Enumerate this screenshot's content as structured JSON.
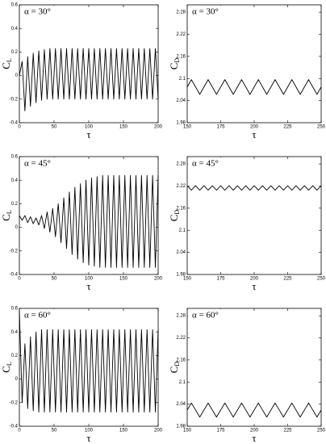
{
  "chart_data": [
    {
      "type": "line",
      "annotation": "α = 30°",
      "xlabel": "τ",
      "ylabel": "C",
      "ylabel_sub": "L",
      "color": "#000000",
      "xlim": [
        0,
        200
      ],
      "xticks": [
        0,
        50,
        100,
        150,
        200
      ],
      "ylim": [
        -0.4,
        0.6
      ],
      "yticks": [
        -0.4,
        -0.2,
        0,
        0.2,
        0.4,
        0.6
      ],
      "x": [
        0,
        4,
        8,
        12,
        16,
        20,
        24,
        28,
        32,
        36,
        40,
        44,
        48,
        52,
        56,
        60,
        64,
        68,
        72,
        76,
        80,
        84,
        88,
        92,
        96,
        100,
        104,
        108,
        112,
        116,
        120,
        124,
        128,
        132,
        136,
        140,
        144,
        148,
        152,
        156,
        160,
        164,
        168,
        172,
        176,
        180,
        184,
        188,
        192,
        196,
        200
      ],
      "values": [
        0,
        0.12,
        -0.3,
        0.16,
        -0.26,
        0.19,
        -0.23,
        0.21,
        -0.21,
        0.22,
        -0.2,
        0.23,
        -0.2,
        0.23,
        -0.2,
        0.23,
        -0.2,
        0.23,
        -0.2,
        0.23,
        -0.2,
        0.23,
        -0.2,
        0.23,
        -0.2,
        0.23,
        -0.2,
        0.23,
        -0.2,
        0.23,
        -0.2,
        0.23,
        -0.2,
        0.23,
        -0.2,
        0.23,
        -0.2,
        0.23,
        -0.2,
        0.23,
        -0.2,
        0.23,
        -0.2,
        0.23,
        -0.2,
        0.23,
        -0.2,
        0.23,
        -0.2,
        0.23,
        -0.2
      ]
    },
    {
      "type": "line",
      "annotation": "α = 30°",
      "xlabel": "τ",
      "ylabel": "C",
      "ylabel_sub": "D",
      "color": "#000000",
      "xlim": [
        150,
        250
      ],
      "xticks": [
        150,
        175,
        200,
        225,
        250
      ],
      "ylim": [
        1.98,
        2.3
      ],
      "yticks": [
        1.98,
        2.04,
        2.1,
        2.16,
        2.22,
        2.28
      ],
      "x": [
        150,
        153.125,
        156.25,
        159.375,
        162.5,
        165.625,
        168.75,
        171.875,
        175,
        178.125,
        181.25,
        184.375,
        187.5,
        190.625,
        193.75,
        196.875,
        200,
        203.125,
        206.25,
        209.375,
        212.5,
        215.625,
        218.75,
        221.875,
        225,
        228.125,
        231.25,
        234.375,
        237.5,
        240.625,
        243.75,
        246.875,
        250
      ],
      "values": [
        2.077,
        2.097,
        2.077,
        2.057,
        2.077,
        2.097,
        2.077,
        2.057,
        2.077,
        2.097,
        2.077,
        2.057,
        2.077,
        2.097,
        2.077,
        2.057,
        2.077,
        2.097,
        2.077,
        2.057,
        2.077,
        2.097,
        2.077,
        2.057,
        2.077,
        2.097,
        2.077,
        2.057,
        2.077,
        2.097,
        2.077,
        2.057,
        2.077
      ]
    },
    {
      "type": "line",
      "annotation": "α = 45°",
      "xlabel": "τ",
      "ylabel": "C",
      "ylabel_sub": "L",
      "color": "#000000",
      "xlim": [
        0,
        200
      ],
      "xticks": [
        0,
        50,
        100,
        150,
        200
      ],
      "ylim": [
        -0.4,
        0.6
      ],
      "yticks": [
        -0.4,
        -0.2,
        0,
        0.2,
        0.4,
        0.6
      ],
      "x": [
        0,
        4,
        8,
        12,
        16,
        20,
        24,
        28,
        32,
        36,
        40,
        44,
        48,
        52,
        56,
        60,
        64,
        68,
        72,
        76,
        80,
        84,
        88,
        92,
        96,
        100,
        104,
        108,
        112,
        116,
        120,
        124,
        128,
        132,
        136,
        140,
        144,
        148,
        152,
        156,
        160,
        164,
        168,
        172,
        176,
        180,
        184,
        188,
        192,
        196,
        200
      ],
      "values": [
        0.1,
        0.06,
        0.1,
        0.04,
        0.09,
        0.03,
        0.08,
        0.02,
        0.1,
        -0.01,
        0.13,
        -0.04,
        0.16,
        -0.08,
        0.2,
        -0.13,
        0.25,
        -0.18,
        0.3,
        -0.23,
        0.34,
        -0.27,
        0.37,
        -0.3,
        0.4,
        -0.32,
        0.42,
        -0.33,
        0.43,
        -0.34,
        0.44,
        -0.34,
        0.44,
        -0.34,
        0.44,
        -0.34,
        0.44,
        -0.34,
        0.44,
        -0.34,
        0.44,
        -0.34,
        0.44,
        -0.34,
        0.44,
        -0.34,
        0.44,
        -0.34,
        0.44,
        -0.34,
        0.44
      ]
    },
    {
      "type": "line",
      "annotation": "α = 45°",
      "xlabel": "τ",
      "ylabel": "C",
      "ylabel_sub": "D",
      "color": "#000000",
      "xlim": [
        150,
        250
      ],
      "xticks": [
        150,
        175,
        200,
        225,
        250
      ],
      "ylim": [
        1.98,
        2.3
      ],
      "yticks": [
        1.98,
        2.04,
        2.1,
        2.16,
        2.22,
        2.28
      ],
      "x": [
        150,
        153.125,
        156.25,
        159.375,
        162.5,
        165.625,
        168.75,
        171.875,
        175,
        178.125,
        181.25,
        184.375,
        187.5,
        190.625,
        193.75,
        196.875,
        200,
        203.125,
        206.25,
        209.375,
        212.5,
        215.625,
        218.75,
        221.875,
        225,
        228.125,
        231.25,
        234.375,
        237.5,
        240.625,
        243.75,
        246.875,
        250
      ],
      "values": [
        2.221,
        2.209,
        2.221,
        2.209,
        2.221,
        2.209,
        2.221,
        2.209,
        2.221,
        2.209,
        2.221,
        2.209,
        2.221,
        2.209,
        2.221,
        2.209,
        2.221,
        2.209,
        2.221,
        2.209,
        2.221,
        2.209,
        2.221,
        2.209,
        2.221,
        2.209,
        2.221,
        2.209,
        2.221,
        2.209,
        2.221,
        2.209,
        2.221
      ]
    },
    {
      "type": "line",
      "annotation": "α = 60°",
      "xlabel": "τ",
      "ylabel": "C",
      "ylabel_sub": "L",
      "color": "#000000",
      "xlim": [
        0,
        200
      ],
      "xticks": [
        0,
        50,
        100,
        150,
        200
      ],
      "ylim": [
        -0.4,
        0.6
      ],
      "yticks": [
        -0.4,
        -0.2,
        0,
        0.2,
        0.4,
        0.6
      ],
      "x": [
        0,
        4,
        8,
        12,
        16,
        20,
        24,
        28,
        32,
        36,
        40,
        44,
        48,
        52,
        56,
        60,
        64,
        68,
        72,
        76,
        80,
        84,
        88,
        92,
        96,
        100,
        104,
        108,
        112,
        116,
        120,
        124,
        128,
        132,
        136,
        140,
        144,
        148,
        152,
        156,
        160,
        164,
        168,
        172,
        176,
        180,
        184,
        188,
        192,
        196,
        200
      ],
      "values": [
        0.58,
        -0.2,
        0.3,
        -0.25,
        0.36,
        -0.27,
        0.4,
        -0.28,
        0.42,
        -0.28,
        0.42,
        -0.28,
        0.42,
        -0.28,
        0.42,
        -0.28,
        0.42,
        -0.28,
        0.42,
        -0.28,
        0.42,
        -0.28,
        0.42,
        -0.28,
        0.42,
        -0.28,
        0.42,
        -0.28,
        0.42,
        -0.28,
        0.42,
        -0.28,
        0.42,
        -0.28,
        0.42,
        -0.28,
        0.42,
        -0.28,
        0.42,
        -0.28,
        0.42,
        -0.28,
        0.42,
        -0.28,
        0.42,
        -0.28,
        0.42,
        -0.28,
        0.42,
        -0.28,
        0.42
      ]
    },
    {
      "type": "line",
      "annotation": "α = 60°",
      "xlabel": "τ",
      "ylabel": "C",
      "ylabel_sub": "D",
      "color": "#000000",
      "xlim": [
        150,
        250
      ],
      "xticks": [
        150,
        175,
        200,
        225,
        250
      ],
      "ylim": [
        1.98,
        2.3
      ],
      "yticks": [
        1.98,
        2.04,
        2.1,
        2.16,
        2.22,
        2.28
      ],
      "x": [
        150,
        153.125,
        156.25,
        159.375,
        162.5,
        165.625,
        168.75,
        171.875,
        175,
        178.125,
        181.25,
        184.375,
        187.5,
        190.625,
        193.75,
        196.875,
        200,
        203.125,
        206.25,
        209.375,
        212.5,
        215.625,
        218.75,
        221.875,
        225,
        228.125,
        231.25,
        234.375,
        237.5,
        240.625,
        243.75,
        246.875,
        250
      ],
      "values": [
        2.024,
        2.043,
        2.024,
        2.005,
        2.024,
        2.043,
        2.024,
        2.005,
        2.024,
        2.043,
        2.024,
        2.005,
        2.024,
        2.043,
        2.024,
        2.005,
        2.024,
        2.043,
        2.024,
        2.005,
        2.024,
        2.043,
        2.024,
        2.005,
        2.024,
        2.043,
        2.024,
        2.005,
        2.024,
        2.043,
        2.024,
        2.005,
        2.024
      ]
    }
  ]
}
